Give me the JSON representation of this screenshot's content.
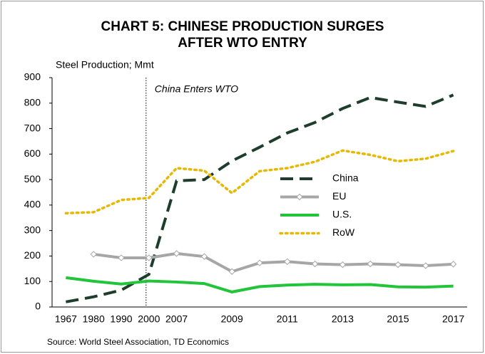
{
  "chart_data": {
    "type": "line",
    "title": [
      "CHART 5: CHINESE PRODUCTION SURGES",
      "AFTER WTO ENTRY"
    ],
    "y_label": "Steel Production; Mmt",
    "source": "Source: World Steel Association, TD Economics",
    "annotation": {
      "text": "China Enters WTO",
      "x": "2000"
    },
    "categories": [
      "1967",
      "1980",
      "1990",
      "2000",
      "2007",
      null,
      "2009",
      null,
      "2011",
      null,
      "2013",
      null,
      "2015",
      null,
      "2017"
    ],
    "ylim": [
      0,
      900
    ],
    "yticks": [
      0,
      100,
      200,
      300,
      400,
      500,
      600,
      700,
      800,
      900
    ],
    "grid": false,
    "legend": "right",
    "series": [
      {
        "name": "China",
        "color": "#1e3d2a",
        "dash": "dashed",
        "values": [
          20,
          40,
          66,
          128,
          495,
          500,
          573,
          627,
          683,
          724,
          779,
          822,
          804,
          787,
          832
        ]
      },
      {
        "name": "EU",
        "color": "#a6a6a6",
        "dash": "solid",
        "marker": "diamond",
        "values": [
          null,
          207,
          193,
          193,
          210,
          198,
          139,
          173,
          178,
          169,
          166,
          169,
          166,
          162,
          168
        ]
      },
      {
        "name": "U.S.",
        "color": "#22c43a",
        "dash": "solid",
        "values": [
          115,
          101,
          90,
          102,
          98,
          92,
          59,
          80,
          86,
          89,
          87,
          88,
          79,
          78,
          82
        ]
      },
      {
        "name": "RoW",
        "color": "#e6b800",
        "dash": "dotted",
        "values": [
          368,
          372,
          420,
          428,
          545,
          535,
          447,
          533,
          545,
          570,
          614,
          597,
          572,
          582,
          612
        ]
      }
    ]
  }
}
